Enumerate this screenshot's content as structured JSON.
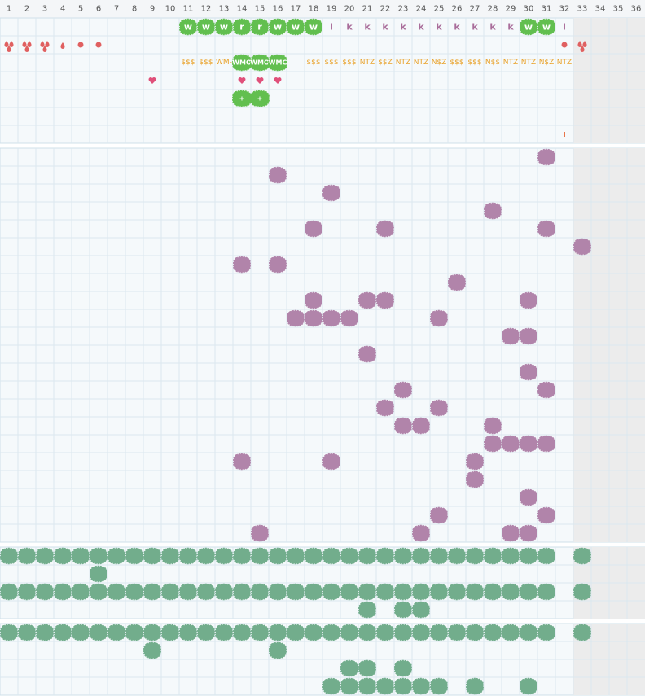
{
  "columns": [
    1,
    2,
    3,
    4,
    5,
    6,
    7,
    8,
    9,
    10,
    11,
    12,
    13,
    14,
    15,
    16,
    17,
    18,
    19,
    20,
    21,
    22,
    23,
    24,
    25,
    26,
    27,
    28,
    29,
    30,
    31,
    32,
    33,
    34,
    35,
    36
  ],
  "shaded_from": 33,
  "sections": [
    {
      "rows": [
        {
          "cells": [
            {
              "col": 11,
              "kind": "green",
              "text": "w"
            },
            {
              "col": 12,
              "kind": "green",
              "text": "w"
            },
            {
              "col": 13,
              "kind": "green",
              "text": "w"
            },
            {
              "col": 14,
              "kind": "green",
              "text": "r"
            },
            {
              "col": 15,
              "kind": "green",
              "text": "r"
            },
            {
              "col": 16,
              "kind": "green",
              "text": "w"
            },
            {
              "col": 17,
              "kind": "green",
              "text": "w"
            },
            {
              "col": 18,
              "kind": "green",
              "text": "w"
            },
            {
              "col": 19,
              "kind": "purple-text",
              "text": "l"
            },
            {
              "col": 20,
              "kind": "purple-text",
              "text": "k"
            },
            {
              "col": 21,
              "kind": "purple-text",
              "text": "k"
            },
            {
              "col": 22,
              "kind": "purple-text",
              "text": "k"
            },
            {
              "col": 23,
              "kind": "purple-text",
              "text": "k"
            },
            {
              "col": 24,
              "kind": "purple-text",
              "text": "k"
            },
            {
              "col": 25,
              "kind": "purple-text",
              "text": "k"
            },
            {
              "col": 26,
              "kind": "purple-text",
              "text": "k"
            },
            {
              "col": 27,
              "kind": "purple-text",
              "text": "k"
            },
            {
              "col": 28,
              "kind": "purple-text",
              "text": "k"
            },
            {
              "col": 29,
              "kind": "purple-text",
              "text": "k"
            },
            {
              "col": 30,
              "kind": "green",
              "text": "w"
            },
            {
              "col": 31,
              "kind": "green",
              "text": "w"
            },
            {
              "col": 32,
              "kind": "purple-text",
              "text": "l"
            }
          ]
        },
        {
          "cells": [
            {
              "col": 1,
              "kind": "drops"
            },
            {
              "col": 2,
              "kind": "drops"
            },
            {
              "col": 3,
              "kind": "drops"
            },
            {
              "col": 4,
              "kind": "drop"
            },
            {
              "col": 5,
              "kind": "dot"
            },
            {
              "col": 6,
              "kind": "dot"
            },
            {
              "col": 32,
              "kind": "dot"
            },
            {
              "col": 33,
              "kind": "drops"
            }
          ]
        },
        {
          "cells": [
            {
              "col": 11,
              "kind": "orange-text",
              "text": "$$$"
            },
            {
              "col": 12,
              "kind": "orange-text",
              "text": "$$$"
            },
            {
              "col": 13,
              "kind": "orange-text",
              "text": "WM-"
            },
            {
              "col": 14,
              "kind": "green-small",
              "text": "WMO"
            },
            {
              "col": 15,
              "kind": "green-small",
              "text": "WMO"
            },
            {
              "col": 16,
              "kind": "green-small",
              "text": "WMC"
            },
            {
              "col": 18,
              "kind": "orange-text",
              "text": "$$$"
            },
            {
              "col": 19,
              "kind": "orange-text",
              "text": "$$$"
            },
            {
              "col": 20,
              "kind": "orange-text",
              "text": "$$$"
            },
            {
              "col": 21,
              "kind": "orange-text",
              "text": "NTZ"
            },
            {
              "col": 22,
              "kind": "orange-text",
              "text": "$$Z"
            },
            {
              "col": 23,
              "kind": "orange-text",
              "text": "NTZ"
            },
            {
              "col": 24,
              "kind": "orange-text",
              "text": "NTZ"
            },
            {
              "col": 25,
              "kind": "orange-text",
              "text": "N$Z"
            },
            {
              "col": 26,
              "kind": "orange-text",
              "text": "$$$"
            },
            {
              "col": 27,
              "kind": "orange-text",
              "text": "$$$"
            },
            {
              "col": 28,
              "kind": "orange-text",
              "text": "N$$"
            },
            {
              "col": 29,
              "kind": "orange-text",
              "text": "NTZ"
            },
            {
              "col": 30,
              "kind": "orange-text",
              "text": "NTZ"
            },
            {
              "col": 31,
              "kind": "orange-text",
              "text": "N$Z"
            },
            {
              "col": 32,
              "kind": "orange-text",
              "text": "NTZ"
            }
          ]
        },
        {
          "cells": [
            {
              "col": 9,
              "kind": "heart"
            },
            {
              "col": 14,
              "kind": "heart"
            },
            {
              "col": 15,
              "kind": "heart"
            },
            {
              "col": 16,
              "kind": "heart"
            }
          ]
        },
        {
          "cells": [
            {
              "col": 14,
              "kind": "green-small",
              "text": "+"
            },
            {
              "col": 15,
              "kind": "green-small",
              "text": "+"
            }
          ]
        },
        {
          "cells": []
        },
        {
          "cells": [
            {
              "col": 32,
              "kind": "tick"
            }
          ]
        }
      ]
    },
    {
      "kind": "purple",
      "rows": [
        [
          31
        ],
        [
          16
        ],
        [
          19
        ],
        [
          28
        ],
        [
          18,
          22,
          31
        ],
        [
          33
        ],
        [
          14,
          16
        ],
        [
          26
        ],
        [
          18,
          21,
          22,
          30
        ],
        [
          17,
          18,
          19,
          20,
          25
        ],
        [
          29,
          30
        ],
        [
          21
        ],
        [
          30
        ],
        [
          23,
          31
        ],
        [
          22,
          25
        ],
        [
          23,
          24,
          28
        ],
        [
          28,
          29,
          30,
          31
        ],
        [
          14,
          19,
          27
        ],
        [
          27
        ],
        [
          30
        ],
        [
          25,
          31
        ],
        [
          15,
          24,
          29,
          30
        ]
      ]
    },
    {
      "kind": "teal",
      "rows": [
        [
          1,
          2,
          3,
          4,
          5,
          6,
          7,
          8,
          9,
          10,
          11,
          12,
          13,
          14,
          15,
          16,
          17,
          18,
          19,
          20,
          21,
          22,
          23,
          24,
          25,
          26,
          27,
          28,
          29,
          30,
          31,
          33
        ],
        [
          6
        ],
        [
          1,
          2,
          3,
          4,
          5,
          6,
          7,
          8,
          9,
          10,
          11,
          12,
          13,
          14,
          15,
          16,
          17,
          18,
          19,
          20,
          21,
          22,
          23,
          24,
          25,
          26,
          27,
          28,
          29,
          30,
          31,
          33
        ],
        [
          21,
          23,
          24
        ]
      ]
    },
    {
      "kind": "teal",
      "rows": [
        [
          1,
          2,
          3,
          4,
          5,
          6,
          7,
          8,
          9,
          10,
          11,
          12,
          13,
          14,
          15,
          16,
          17,
          18,
          19,
          20,
          21,
          22,
          23,
          24,
          25,
          26,
          27,
          28,
          29,
          30,
          31,
          33
        ],
        [
          9,
          16
        ],
        [
          20,
          21,
          23
        ],
        [
          19,
          20,
          21,
          22,
          23,
          24,
          25,
          27,
          30
        ]
      ]
    }
  ]
}
